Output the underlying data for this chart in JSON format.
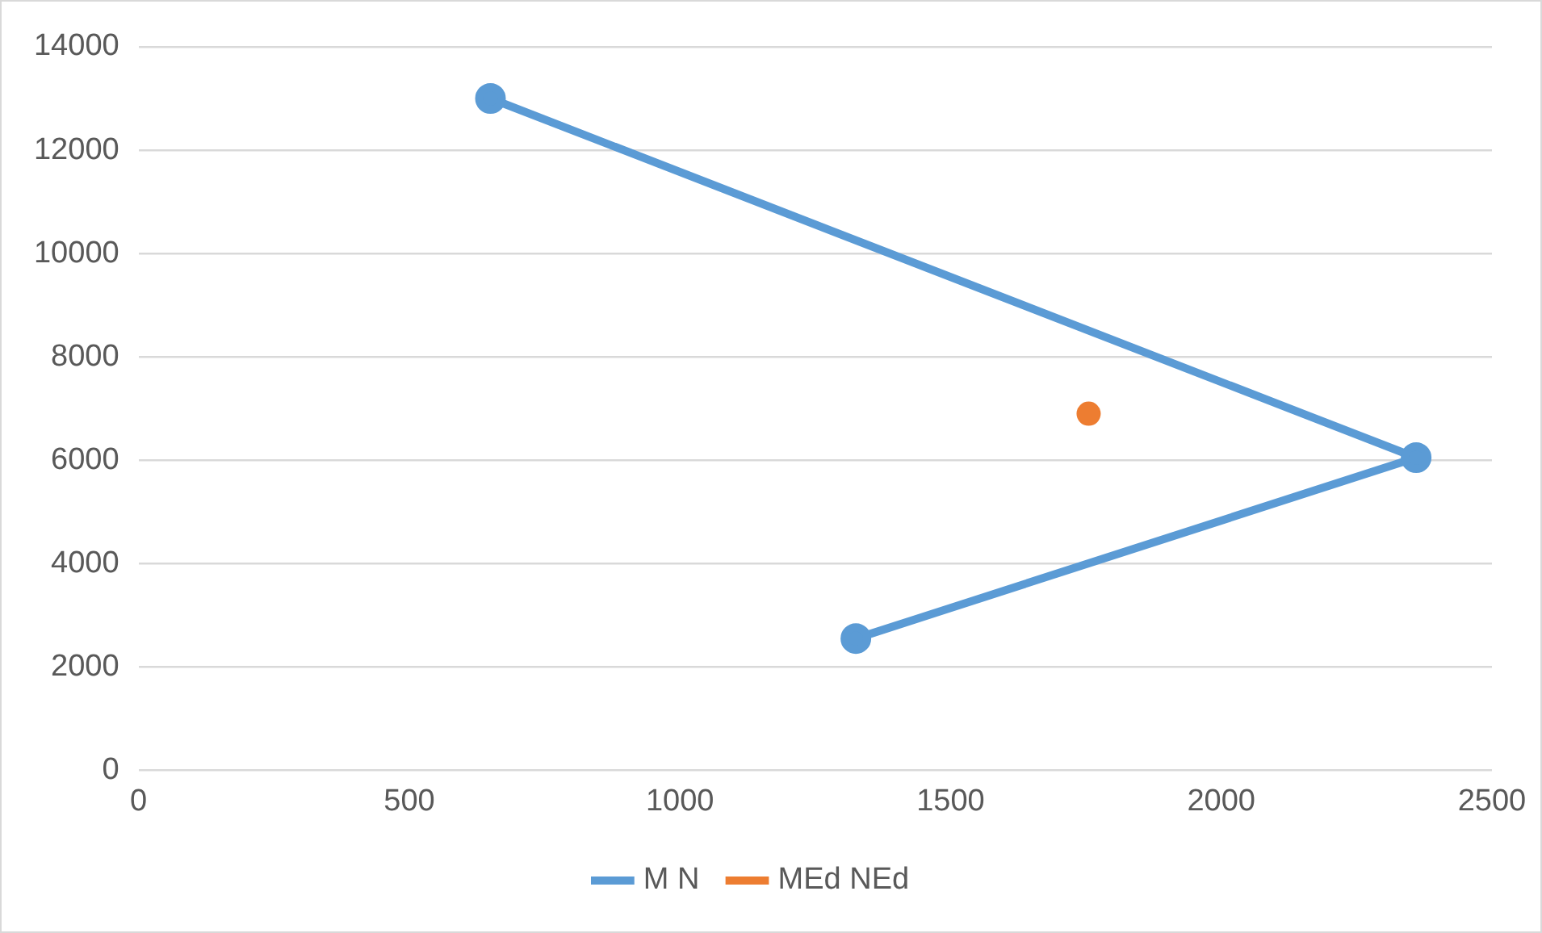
{
  "chart_data": {
    "type": "line",
    "xlim": [
      0,
      2500
    ],
    "xticks": [
      0,
      500,
      1000,
      1500,
      2000,
      2500
    ],
    "ylim": [
      0,
      14000
    ],
    "yticks": [
      0,
      2000,
      4000,
      6000,
      8000,
      10000,
      12000,
      14000
    ],
    "grid": "y",
    "legend": "bottom",
    "marker": "circle",
    "series": [
      {
        "name": "M N",
        "color": "#5b9bd5",
        "x": [
          650,
          2360,
          1325
        ],
        "values": [
          13000,
          6050,
          2550
        ]
      },
      {
        "name": "MEd NEd",
        "type": "scatter",
        "color": "#ed7d31",
        "x": [
          1755
        ],
        "values": [
          6900
        ]
      }
    ]
  }
}
